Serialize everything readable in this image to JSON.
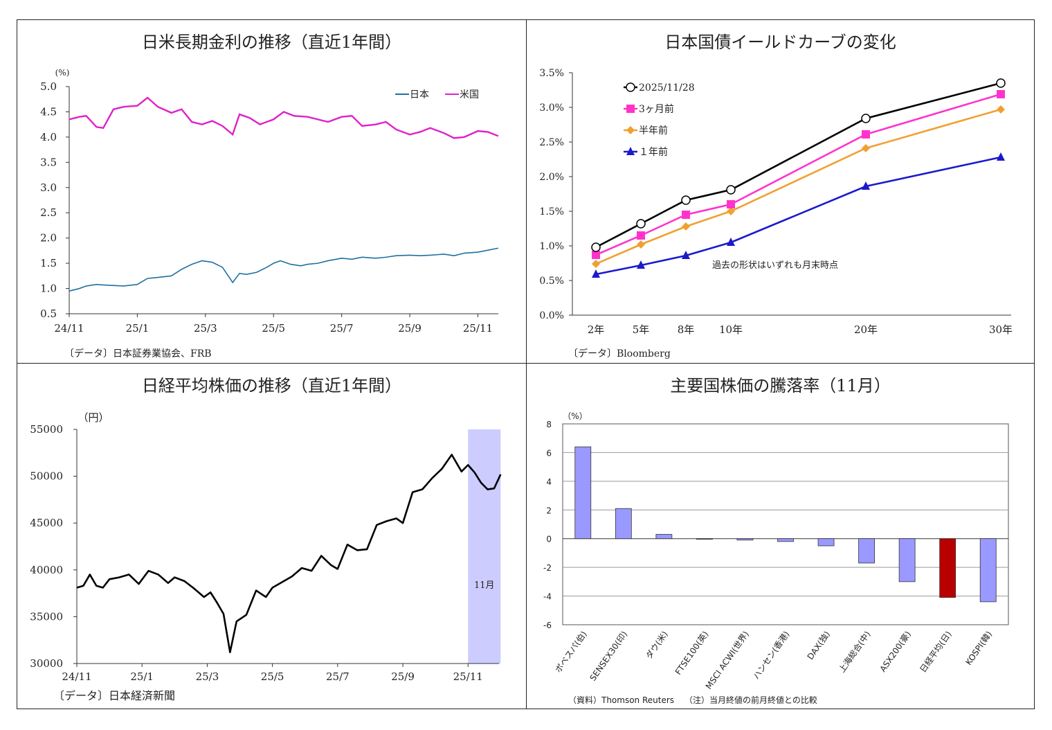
{
  "chart_data": [
    {
      "id": "rates",
      "type": "line",
      "title": "日米長期金利の推移（直近1年間）",
      "ylabel": "(%)",
      "ylim": [
        0.5,
        5.0
      ],
      "yticks": [
        "0.5",
        "1.0",
        "1.5",
        "2.0",
        "2.5",
        "3.0",
        "3.5",
        "4.0",
        "4.5",
        "5.0"
      ],
      "xticks": [
        "24/11",
        "25/1",
        "25/3",
        "25/5",
        "25/7",
        "25/9",
        "25/11"
      ],
      "source": "〔データ〕日本証券業協会、FRB",
      "series": [
        {
          "name": "日本",
          "color": "#1f6fa0",
          "x": [
            0,
            0.3,
            0.5,
            0.8,
            1,
            1.3,
            1.6,
            2,
            2.3,
            2.6,
            3,
            3.3,
            3.6,
            3.9,
            4.2,
            4.5,
            4.8,
            5,
            5.2,
            5.5,
            5.8,
            6,
            6.2,
            6.5,
            6.8,
            7,
            7.3,
            7.6,
            8,
            8.3,
            8.6,
            9,
            9.3,
            9.6,
            10,
            10.3,
            10.6,
            11,
            11.3,
            11.6,
            12,
            12.3,
            12.6
          ],
          "values": [
            0.95,
            1.0,
            1.05,
            1.08,
            1.07,
            1.06,
            1.05,
            1.08,
            1.2,
            1.22,
            1.25,
            1.38,
            1.48,
            1.55,
            1.52,
            1.42,
            1.12,
            1.3,
            1.28,
            1.32,
            1.42,
            1.5,
            1.55,
            1.48,
            1.45,
            1.48,
            1.5,
            1.55,
            1.6,
            1.58,
            1.62,
            1.6,
            1.62,
            1.65,
            1.66,
            1.65,
            1.66,
            1.68,
            1.65,
            1.7,
            1.72,
            1.76,
            1.8
          ]
        },
        {
          "name": "米国",
          "color": "#e020c8",
          "x": [
            0,
            0.3,
            0.5,
            0.8,
            1,
            1.3,
            1.6,
            2,
            2.3,
            2.6,
            3,
            3.3,
            3.6,
            3.9,
            4.2,
            4.5,
            4.8,
            5,
            5.3,
            5.6,
            6,
            6.3,
            6.6,
            7,
            7.3,
            7.6,
            8,
            8.3,
            8.6,
            9,
            9.3,
            9.6,
            10,
            10.3,
            10.6,
            11,
            11.3,
            11.6,
            12,
            12.3,
            12.6
          ],
          "values": [
            4.35,
            4.4,
            4.42,
            4.2,
            4.18,
            4.55,
            4.6,
            4.62,
            4.78,
            4.6,
            4.48,
            4.55,
            4.3,
            4.25,
            4.32,
            4.22,
            4.05,
            4.45,
            4.38,
            4.25,
            4.35,
            4.5,
            4.42,
            4.4,
            4.35,
            4.3,
            4.4,
            4.42,
            4.22,
            4.25,
            4.3,
            4.15,
            4.05,
            4.1,
            4.18,
            4.08,
            3.98,
            4.0,
            4.12,
            4.1,
            4.02
          ]
        }
      ]
    },
    {
      "id": "yield_curve",
      "type": "line",
      "title": "日本国債イールドカーブの変化",
      "ylim": [
        0.0,
        3.5
      ],
      "yticks": [
        "0.0%",
        "0.5%",
        "1.0%",
        "1.5%",
        "2.0%",
        "2.5%",
        "3.0%",
        "3.5%"
      ],
      "categories": [
        "2年",
        "5年",
        "8年",
        "10年",
        "20年",
        "30年"
      ],
      "x": [
        2,
        5,
        8,
        10,
        20,
        30
      ],
      "note": "過去の形状はいずれも月末時点",
      "source": "〔データ〕Bloomberg",
      "series": [
        {
          "name": "2025/11/28",
          "color": "#000000",
          "marker": "circle",
          "values": [
            0.98,
            1.32,
            1.66,
            1.81,
            2.84,
            3.35
          ]
        },
        {
          "name": "3ヶ月前",
          "color": "#ff33cc",
          "marker": "square",
          "values": [
            0.87,
            1.15,
            1.45,
            1.6,
            2.61,
            3.19
          ]
        },
        {
          "name": "半年前",
          "color": "#f0a030",
          "marker": "diamond",
          "values": [
            0.74,
            1.02,
            1.28,
            1.5,
            2.41,
            2.97
          ]
        },
        {
          "name": "１年前",
          "color": "#1a1acc",
          "marker": "triangle",
          "values": [
            0.59,
            0.72,
            0.86,
            1.05,
            1.86,
            2.28
          ]
        }
      ]
    },
    {
      "id": "nikkei",
      "type": "line",
      "title": "日経平均株価の推移（直近1年間）",
      "ylabel": "（円）",
      "ylim": [
        30000,
        55000
      ],
      "yticks": [
        "30000",
        "35000",
        "40000",
        "45000",
        "50000",
        "55000"
      ],
      "xticks": [
        "24/11",
        "25/1",
        "25/3",
        "25/5",
        "25/7",
        "25/9",
        "25/11"
      ],
      "highlight_label": "11月",
      "highlight_range": [
        12.0,
        13.0
      ],
      "source": "〔データ〕日本経済新聞",
      "series": [
        {
          "name": "日経平均",
          "color": "#000000",
          "x": [
            0,
            0.2,
            0.4,
            0.6,
            0.8,
            1,
            1.3,
            1.6,
            1.9,
            2.2,
            2.5,
            2.8,
            3,
            3.3,
            3.6,
            3.9,
            4.1,
            4.3,
            4.5,
            4.7,
            4.9,
            5.2,
            5.5,
            5.8,
            6,
            6.3,
            6.6,
            6.9,
            7.2,
            7.5,
            7.8,
            8,
            8.3,
            8.6,
            8.9,
            9.2,
            9.5,
            9.8,
            10,
            10.3,
            10.6,
            10.9,
            11.2,
            11.5,
            11.8,
            12,
            12.2,
            12.4,
            12.6,
            12.8,
            13
          ],
          "values": [
            38100,
            38300,
            39500,
            38300,
            38100,
            39000,
            39200,
            39500,
            38500,
            39900,
            39500,
            38600,
            39200,
            38800,
            38000,
            37100,
            37600,
            36500,
            35300,
            31200,
            34500,
            35200,
            37800,
            37100,
            38100,
            38700,
            39300,
            40200,
            39900,
            41500,
            40500,
            40100,
            42700,
            42100,
            42200,
            44800,
            45200,
            45500,
            45000,
            48300,
            48600,
            49800,
            50800,
            52300,
            50500,
            51200,
            50400,
            49300,
            48600,
            48700,
            50200
          ]
        }
      ]
    },
    {
      "id": "world_stocks",
      "type": "bar",
      "title": "主要国株価の騰落率（11月）",
      "ylabel": "（%）",
      "ylim": [
        -6,
        8
      ],
      "yticks": [
        "8",
        "6",
        "4",
        "2",
        "0",
        "-2",
        "-4",
        "-6"
      ],
      "categories": [
        "ボベスパ(伯)",
        "SENSEX30(印)",
        "ダウ(米)",
        "FTSE100(英)",
        "MSCI ACWI(世界)",
        "ハンセン(香港)",
        "DAX(独)",
        "上海総合(中)",
        "ASX200(豪)",
        "日経平均(日)",
        "KOSPI(韓)"
      ],
      "values": [
        6.4,
        2.1,
        0.3,
        0.0,
        -0.1,
        -0.2,
        -0.5,
        -1.7,
        -3.0,
        -4.1,
        -4.4
      ],
      "highlight_index": 9,
      "colors": {
        "bar": "#9999ff",
        "highlight": "#b80000"
      },
      "source": "（資料）Thomson Reuters",
      "note": "（注）当月終値の前月終値との比較"
    }
  ]
}
